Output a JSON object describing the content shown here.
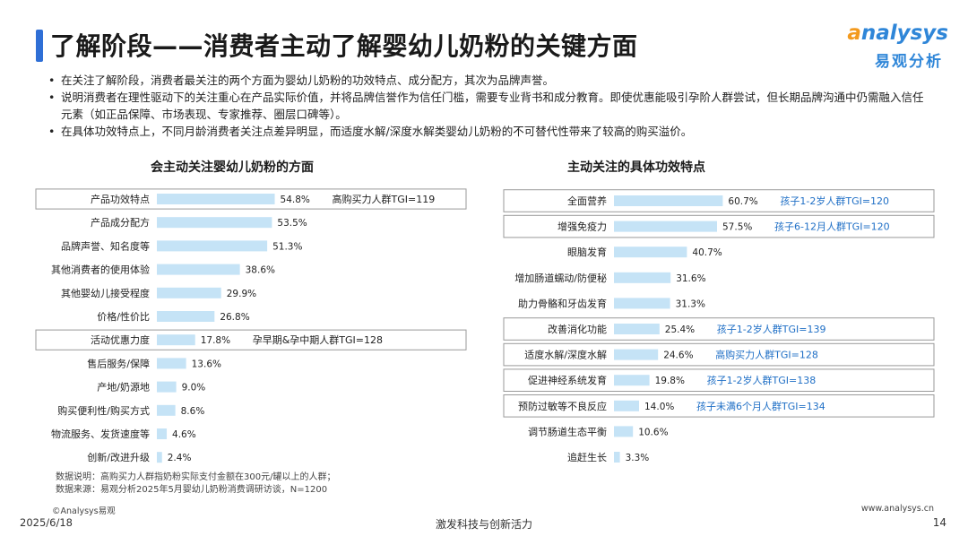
{
  "header": {
    "title": "了解阶段——消费者主动了解婴幼儿奶粉的关键方面",
    "logo_en": "nalysys",
    "logo_cn": "易观分析"
  },
  "bullets": [
    "在关注了解阶段，消费者最关注的两个方面为婴幼儿奶粉的功效特点、成分配方，其次为品牌声誉。",
    "说明消费者在理性驱动下的关注重心在产品实际价值，并将品牌信誉作为信任门槛，需要专业背书和成分教育。即使优惠能吸引孕阶人群尝试，但长期品牌沟通中仍需融入信任元素（如正品保障、市场表现、专家推荐、圈层口碑等）。",
    "在具体功效特点上，不同月龄消费者关注点差异明显，而适度水解/深度水解类婴幼儿奶粉的不可替代性带来了较高的购买溢价。"
  ],
  "chart_data": [
    {
      "type": "bar",
      "orientation": "horizontal",
      "title": "会主动关注婴幼儿奶粉的方面",
      "bar_color": "#c5e3f6",
      "categories": [
        "产品功效特点",
        "产品成分配方",
        "品牌声誉、知名度等",
        "其他消费者的使用体验",
        "其他婴幼儿接受程度",
        "价格/性价比",
        "活动优惠力度",
        "售后服务/保障",
        "产地/奶源地",
        "购买便利性/购买方式",
        "物流服务、发货速度等",
        "创新/改进升级"
      ],
      "values": [
        54.8,
        53.5,
        51.3,
        38.6,
        29.9,
        26.8,
        17.8,
        13.6,
        9.0,
        8.6,
        4.6,
        2.4
      ],
      "value_labels": [
        "54.8%",
        "53.5%",
        "51.3%",
        "38.6%",
        "29.9%",
        "26.8%",
        "17.8%",
        "13.6%",
        "9.0%",
        "8.6%",
        "4.6%",
        "2.4%"
      ],
      "annotations": [
        {
          "index": 0,
          "text": "高购买力人群TGI=119",
          "color": "#222222"
        },
        {
          "index": 6,
          "text": "孕早期&孕中期人群TGI=128",
          "color": "#222222"
        }
      ]
    },
    {
      "type": "bar",
      "orientation": "horizontal",
      "title": "主动关注的具体功效特点",
      "bar_color": "#c5e3f6",
      "categories": [
        "全面营养",
        "增强免疫力",
        "眼脑发育",
        "增加肠道蠕动/防便秘",
        "助力骨骼和牙齿发育",
        "改善消化功能",
        "适度水解/深度水解",
        "促进神经系统发育",
        "预防过敏等不良反应",
        "调节肠道生态平衡",
        "追赶生长"
      ],
      "values": [
        60.7,
        57.5,
        40.7,
        31.6,
        31.3,
        25.4,
        24.6,
        19.8,
        14.0,
        10.6,
        3.3
      ],
      "value_labels": [
        "60.7%",
        "57.5%",
        "40.7%",
        "31.6%",
        "31.3%",
        "25.4%",
        "24.6%",
        "19.8%",
        "14.0%",
        "10.6%",
        "3.3%"
      ],
      "annotations": [
        {
          "index": 0,
          "text": "孩子1-2岁人群TGI=120",
          "color": "#1f6fc6"
        },
        {
          "index": 1,
          "text": "孩子6-12月人群TGI=120",
          "color": "#1f6fc6"
        },
        {
          "index": 5,
          "text": "孩子1-2岁人群TGI=139",
          "color": "#1f6fc6"
        },
        {
          "index": 6,
          "text": "高购买力人群TGI=128",
          "color": "#1f6fc6"
        },
        {
          "index": 7,
          "text": "孩子1-2岁人群TGI=138",
          "color": "#1f6fc6"
        },
        {
          "index": 8,
          "text": "孩子未满6个月人群TGI=134",
          "color": "#1f6fc6"
        }
      ]
    }
  ],
  "notes": [
    "数据说明：高购买力人群指奶粉实际支付金额在300元/罐以上的人群；",
    "数据来源：易观分析2025年5月婴幼儿奶粉消费调研访谈，N=1200"
  ],
  "footer": {
    "copyright": "©Analysys易观",
    "date": "2025/6/18",
    "center": "激发科技与创新活力",
    "website": "www.analysys.cn",
    "page": "14"
  }
}
